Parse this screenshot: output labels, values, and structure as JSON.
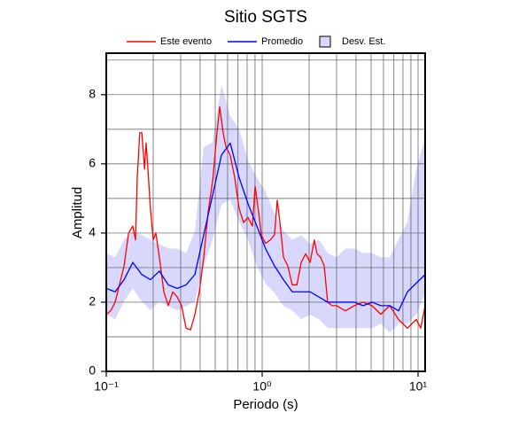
{
  "chart_data": {
    "type": "line",
    "title": "Sitio SGTS",
    "xlabel": "Periodo (s)",
    "ylabel": "Amplitud",
    "xscale": "log",
    "xlim": [
      0.1,
      11.1
    ],
    "ylim": [
      0,
      9.2
    ],
    "xticks": [
      {
        "value": 0.1,
        "label": "10⁻¹"
      },
      {
        "value": 1,
        "label": "10⁰"
      },
      {
        "value": 10,
        "label": "10¹"
      }
    ],
    "xminor": [
      0.2,
      0.3,
      0.4,
      0.5,
      0.6,
      0.7,
      0.8,
      0.9,
      2,
      3,
      4,
      5,
      6,
      7,
      8,
      9
    ],
    "yticks": [
      0,
      2,
      4,
      6,
      8
    ],
    "yminor": [
      1,
      3,
      5,
      7,
      9
    ],
    "grid": true,
    "series": [
      {
        "name": "Este evento",
        "color": "#ff0000",
        "x": [
          0.1,
          0.107,
          0.114,
          0.13,
          0.139,
          0.148,
          0.154,
          0.158,
          0.164,
          0.169,
          0.176,
          0.18,
          0.185,
          0.192,
          0.2,
          0.208,
          0.219,
          0.234,
          0.25,
          0.267,
          0.285,
          0.304,
          0.325,
          0.347,
          0.37,
          0.395,
          0.422,
          0.45,
          0.481,
          0.513,
          0.534,
          0.562,
          0.585,
          0.624,
          0.667,
          0.712,
          0.76,
          0.811,
          0.866,
          0.901,
          0.949,
          0.987,
          1.05,
          1.13,
          1.2,
          1.25,
          1.3,
          1.37,
          1.46,
          1.56,
          1.67,
          1.78,
          1.9,
          2.03,
          2.16,
          2.25,
          2.37,
          2.5,
          2.63,
          2.81,
          3.0,
          3.42,
          3.9,
          4.44,
          5.07,
          5.77,
          6.58,
          7.5,
          8.55,
          9.74,
          10.4,
          11.1
        ],
        "values": [
          1.64,
          1.76,
          2.0,
          3.04,
          4.0,
          4.2,
          3.8,
          5.6,
          6.9,
          6.9,
          5.85,
          6.6,
          5.85,
          4.7,
          3.8,
          4.0,
          3.3,
          2.3,
          1.9,
          2.3,
          2.15,
          1.9,
          1.25,
          1.2,
          1.64,
          2.3,
          3.3,
          4.6,
          5.5,
          6.9,
          7.65,
          6.9,
          6.5,
          6.25,
          5.6,
          4.7,
          4.3,
          4.45,
          4.2,
          5.35,
          4.6,
          3.95,
          3.7,
          3.8,
          3.95,
          4.95,
          4.3,
          3.3,
          3.05,
          2.5,
          2.5,
          3.15,
          3.4,
          3.15,
          3.8,
          3.4,
          3.3,
          3.05,
          2.0,
          1.9,
          1.9,
          1.75,
          1.9,
          2.0,
          1.9,
          1.65,
          1.9,
          1.5,
          1.25,
          1.5,
          1.25,
          1.9
        ]
      },
      {
        "name": "Promedio",
        "color": "#0000ff",
        "x": [
          0.1,
          0.114,
          0.13,
          0.148,
          0.169,
          0.192,
          0.219,
          0.25,
          0.285,
          0.325,
          0.37,
          0.422,
          0.481,
          0.548,
          0.624,
          0.712,
          0.811,
          0.925,
          1.05,
          1.2,
          1.37,
          1.56,
          1.78,
          2.03,
          2.31,
          2.63,
          3.0,
          3.42,
          3.9,
          4.44,
          5.07,
          5.77,
          6.58,
          7.5,
          8.55,
          9.74,
          11.1
        ],
        "values": [
          2.4,
          2.3,
          2.65,
          3.15,
          2.8,
          2.65,
          2.9,
          2.5,
          2.4,
          2.5,
          2.8,
          3.95,
          5.1,
          6.25,
          6.6,
          5.6,
          4.85,
          4.2,
          3.55,
          3.05,
          2.65,
          2.3,
          2.3,
          2.3,
          2.15,
          2.0,
          2.0,
          2.0,
          2.0,
          1.9,
          2.0,
          1.9,
          1.9,
          1.75,
          2.3,
          2.55,
          2.8
        ]
      },
      {
        "name": "Desv. Est.",
        "color": "#d8d8fc",
        "x": [
          0.1,
          0.114,
          0.13,
          0.148,
          0.169,
          0.192,
          0.219,
          0.25,
          0.285,
          0.325,
          0.37,
          0.422,
          0.481,
          0.548,
          0.624,
          0.712,
          0.811,
          0.925,
          1.05,
          1.2,
          1.37,
          1.56,
          1.78,
          2.03,
          2.31,
          2.63,
          3.0,
          3.42,
          3.9,
          4.44,
          5.07,
          5.77,
          6.58,
          7.5,
          8.55,
          9.74,
          11.1
        ],
        "upper": [
          3.42,
          3.3,
          3.81,
          4.06,
          3.94,
          3.81,
          3.68,
          3.55,
          3.55,
          3.42,
          4.06,
          6.49,
          6.62,
          8.28,
          7.39,
          7.0,
          6.1,
          5.6,
          5.21,
          4.57,
          4.06,
          3.81,
          3.94,
          3.68,
          3.81,
          3.42,
          3.3,
          3.55,
          3.55,
          3.42,
          3.42,
          3.3,
          3.3,
          3.81,
          4.32,
          5.85,
          6.75
        ],
        "lower": [
          1.64,
          1.51,
          2.02,
          2.4,
          2.02,
          1.76,
          2.02,
          1.89,
          1.76,
          1.89,
          2.02,
          3.04,
          3.81,
          4.83,
          4.96,
          4.32,
          3.81,
          3.04,
          2.53,
          2.27,
          1.89,
          1.76,
          1.51,
          1.64,
          1.51,
          1.25,
          1.25,
          1.25,
          1.25,
          1.25,
          1.25,
          1.38,
          1.12,
          1.38,
          1.38,
          1.64,
          2.27
        ]
      }
    ]
  }
}
